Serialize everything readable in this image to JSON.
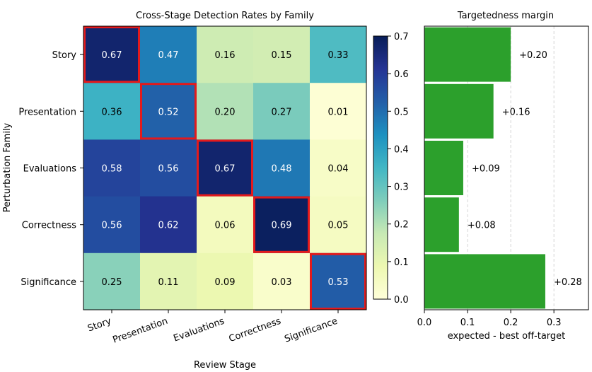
{
  "chart_data": [
    {
      "type": "heatmap",
      "title": "Cross-Stage Detection Rates by Family",
      "xlabel": "Review Stage",
      "ylabel": "Perturbation Family",
      "x_categories": [
        "Story",
        "Presentation",
        "Evaluations",
        "Correctness",
        "Significance"
      ],
      "y_categories": [
        "Story",
        "Presentation",
        "Evaluations",
        "Correctness",
        "Significance"
      ],
      "values": [
        [
          0.67,
          0.47,
          0.16,
          0.15,
          0.33
        ],
        [
          0.36,
          0.52,
          0.2,
          0.27,
          0.01
        ],
        [
          0.58,
          0.56,
          0.67,
          0.48,
          0.04
        ],
        [
          0.56,
          0.62,
          0.06,
          0.69,
          0.05
        ],
        [
          0.25,
          0.11,
          0.09,
          0.03,
          0.53
        ]
      ],
      "cell_labels": [
        [
          "0.67",
          "0.47",
          "0.16",
          "0.15",
          "0.33"
        ],
        [
          "0.36",
          "0.52",
          "0.20",
          "0.27",
          "0.01"
        ],
        [
          "0.58",
          "0.56",
          "0.67",
          "0.48",
          "0.04"
        ],
        [
          "0.56",
          "0.62",
          "0.06",
          "0.69",
          "0.05"
        ],
        [
          "0.25",
          "0.11",
          "0.09",
          "0.03",
          "0.53"
        ]
      ],
      "highlighted_cells": [
        [
          0,
          0
        ],
        [
          1,
          1
        ],
        [
          2,
          2
        ],
        [
          3,
          3
        ],
        [
          4,
          4
        ]
      ],
      "highlight_color": "#e31a1c",
      "colormap": "YlGnBu",
      "colorbar": {
        "range": [
          0.0,
          0.7
        ],
        "ticks": [
          "0.0",
          "0.1",
          "0.2",
          "0.3",
          "0.4",
          "0.5",
          "0.6",
          "0.7"
        ]
      }
    },
    {
      "type": "bar",
      "orientation": "horizontal",
      "title": "Targetedness margin",
      "xlabel": "expected - best off-target",
      "categories": [
        "Story",
        "Presentation",
        "Evaluations",
        "Correctness",
        "Significance"
      ],
      "values": [
        0.2,
        0.16,
        0.09,
        0.08,
        0.28
      ],
      "value_labels": [
        "+0.20",
        "+0.16",
        "+0.09",
        "+0.08",
        "+0.28"
      ],
      "xlim": [
        0,
        0.38
      ],
      "xticks": [
        "0.0",
        "0.1",
        "0.2",
        "0.3"
      ],
      "xtick_values": [
        0.0,
        0.1,
        0.2,
        0.3
      ],
      "bar_color": "#2ca02c",
      "grid": "vertical dashed"
    }
  ]
}
